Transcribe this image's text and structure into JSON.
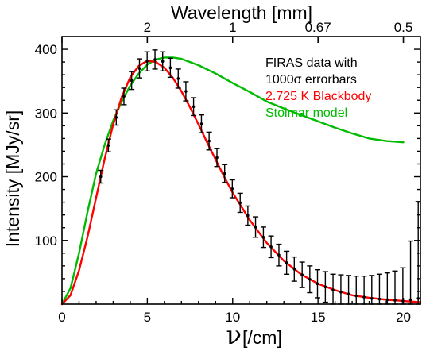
{
  "chart_data": {
    "type": "line",
    "title": "",
    "xlabel": "ν[/cm]",
    "xlabel_symbol": "ν",
    "xlabel_unit": "[/cm]",
    "ylabel": "Intensity [MJy/sr]",
    "top_xlabel": "Wavelength [mm]",
    "xlim": [
      0,
      21
    ],
    "ylim": [
      0,
      420
    ],
    "x_ticks": [
      0,
      5,
      10,
      15,
      20
    ],
    "y_ticks": [
      100,
      200,
      300,
      400
    ],
    "top_ticks": [
      {
        "label": "2",
        "x": 5
      },
      {
        "label": "1",
        "x": 10
      },
      {
        "label": "0.67",
        "x": 15
      },
      {
        "label": "0.5",
        "x": 20
      }
    ],
    "legend": {
      "placement": "top-right",
      "entries": [
        {
          "text": "FIRAS data with",
          "color": "#000000"
        },
        {
          "text": "1000σ errorbars",
          "color": "#000000"
        },
        {
          "text": "2.725 K Blackbody",
          "color": "#ff0000"
        },
        {
          "text": "Stolmar model",
          "color": "#00bb00"
        }
      ]
    },
    "series": [
      {
        "name": "Stolmar model",
        "color": "#00bb00",
        "x": [
          0,
          0.5,
          1,
          1.5,
          2,
          2.5,
          3,
          3.5,
          4,
          4.5,
          5,
          5.5,
          6,
          6.5,
          7,
          8,
          9,
          10,
          11,
          12,
          13,
          14,
          15,
          16,
          17,
          18,
          19,
          20
        ],
        "y": [
          0,
          25,
          80,
          145,
          205,
          250,
          288,
          318,
          343,
          362,
          376,
          384,
          387,
          387,
          385,
          375,
          362,
          347,
          333,
          318,
          307,
          297,
          287,
          277,
          268,
          260,
          256,
          254
        ]
      },
      {
        "name": "2.725 K Blackbody",
        "color": "#ff0000",
        "x": [
          0,
          0.5,
          1,
          1.5,
          2,
          2.5,
          3,
          3.5,
          4,
          4.5,
          5,
          5.5,
          6,
          6.5,
          7,
          7.5,
          8,
          8.5,
          9,
          9.5,
          10,
          11,
          12,
          13,
          14,
          15,
          16,
          17,
          18,
          19,
          20,
          21
        ],
        "y": [
          0,
          14,
          53,
          106,
          167,
          228,
          282,
          325,
          356,
          374,
          382,
          380,
          371,
          355,
          334,
          309,
          282,
          254,
          227,
          200,
          175,
          132,
          96,
          68,
          47,
          32,
          22,
          14,
          10,
          7,
          5,
          3
        ]
      }
    ],
    "firas_data": {
      "x": [
        2.27,
        2.72,
        3.18,
        3.63,
        4.08,
        4.54,
        4.99,
        5.45,
        5.9,
        6.35,
        6.81,
        7.26,
        7.71,
        8.17,
        8.62,
        9.08,
        9.53,
        9.98,
        10.44,
        10.89,
        11.34,
        11.8,
        12.25,
        12.71,
        13.16,
        13.61,
        14.07,
        14.52,
        14.97,
        15.43,
        15.88,
        16.34,
        16.79,
        17.24,
        17.7,
        18.15,
        18.6,
        19.06,
        19.51,
        19.97,
        20.42,
        20.87
      ],
      "y": [
        200,
        249,
        293,
        326,
        351,
        370,
        381,
        384,
        381,
        371,
        354,
        334,
        310,
        283,
        256,
        230,
        205,
        181,
        159,
        139,
        121,
        105,
        90,
        77,
        65,
        55,
        46,
        39,
        32,
        27,
        22,
        19,
        16,
        13,
        11,
        9,
        8,
        7,
        6,
        5,
        7,
        9
      ],
      "err": [
        10,
        10,
        12,
        13,
        14,
        15,
        15,
        15,
        15,
        15,
        15,
        15,
        14,
        14,
        14,
        14,
        14,
        14,
        15,
        15,
        16,
        16,
        17,
        17,
        18,
        19,
        20,
        21,
        22,
        24,
        25,
        27,
        29,
        31,
        33,
        36,
        39,
        42,
        46,
        52,
        92,
        152
      ]
    }
  }
}
